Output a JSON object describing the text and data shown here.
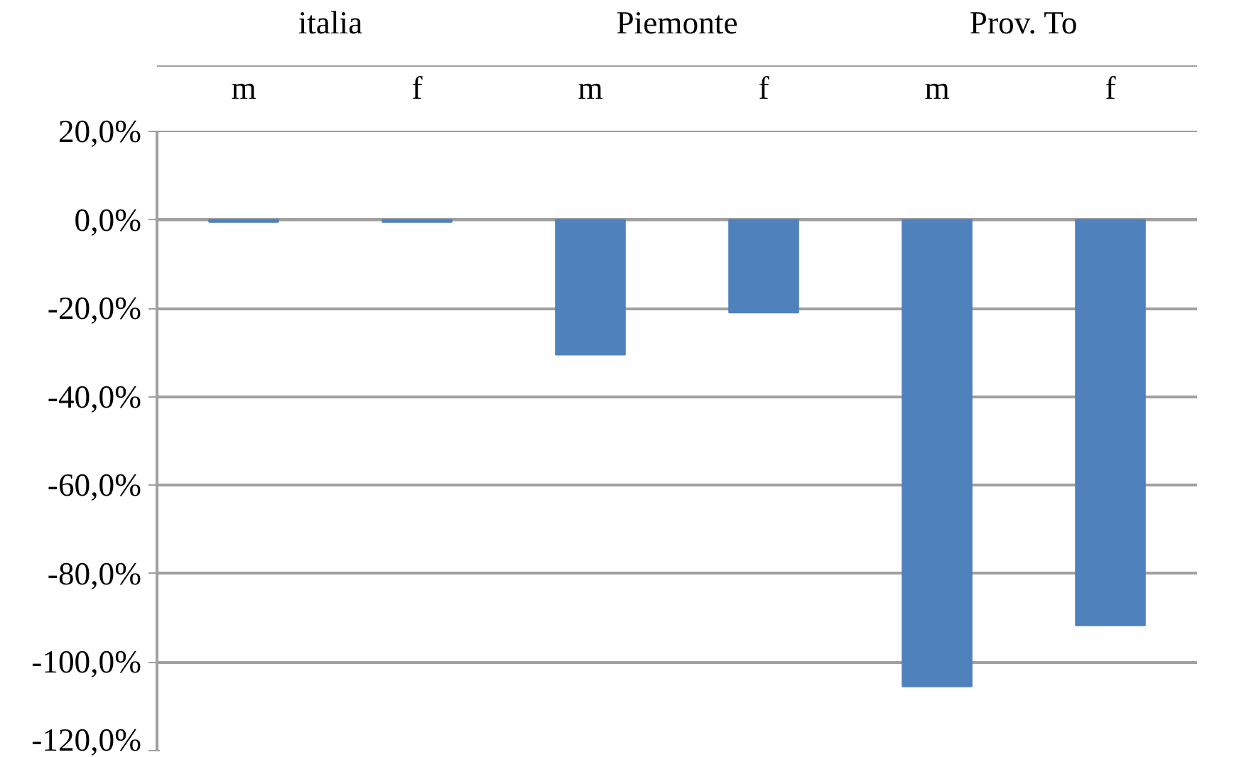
{
  "chart_data": {
    "type": "bar",
    "categories": [
      "m",
      "f",
      "m",
      "f",
      "m",
      "f"
    ],
    "annotations": [
      "italia",
      "Piemonte",
      "Prov. To"
    ],
    "values": [
      -0.5,
      -0.5,
      -30.5,
      -21,
      -105.5,
      -91.7
    ],
    "color": "#4f81bd",
    "ylim": [
      -120,
      20
    ],
    "yticks": [
      {
        "value": 20,
        "label": "20,0%"
      },
      {
        "value": 0,
        "label": "0,0%"
      },
      {
        "value": -20,
        "label": "-20,0%"
      },
      {
        "value": -40,
        "label": "-40,0%"
      },
      {
        "value": -60,
        "label": "-60,0%"
      },
      {
        "value": -80,
        "label": "-80,0%"
      },
      {
        "value": -100,
        "label": "-100,0%"
      },
      {
        "value": -120,
        "label": "-120,0%"
      }
    ],
    "grid": "y"
  }
}
